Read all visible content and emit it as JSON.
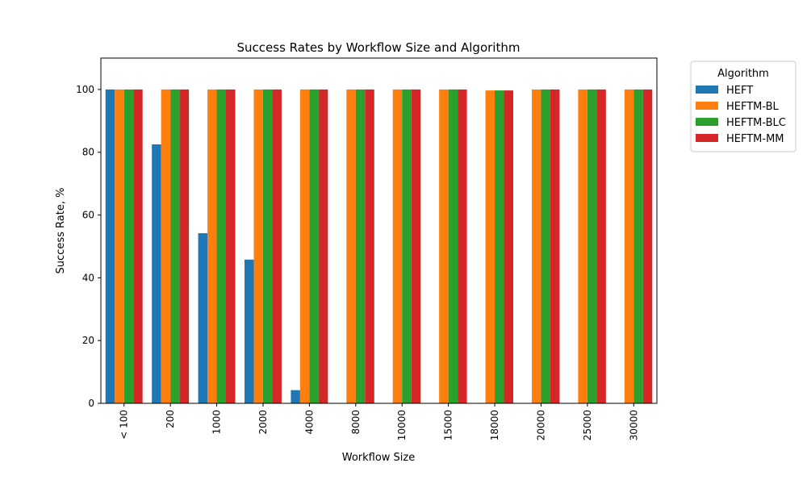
{
  "chart_data": {
    "type": "bar",
    "title": "Success Rates by Workflow Size and Algorithm",
    "xlabel": "Workflow Size",
    "ylabel": "Success Rate, %",
    "categories": [
      "< 100",
      "200",
      "1000",
      "2000",
      "4000",
      "8000",
      "10000",
      "15000",
      "18000",
      "20000",
      "25000",
      "30000"
    ],
    "series": [
      {
        "name": "HEFT",
        "color": "#1f77b4",
        "values": [
          100,
          82.5,
          54.2,
          45.8,
          4.2,
          0,
          0,
          0,
          0,
          0,
          0,
          0
        ]
      },
      {
        "name": "HEFTM-BL",
        "color": "#ff7f0e",
        "values": [
          100,
          100,
          100,
          100,
          100,
          100,
          100,
          100,
          99.7,
          100,
          100,
          100
        ]
      },
      {
        "name": "HEFTM-BLC",
        "color": "#2ca02c",
        "values": [
          100,
          100,
          100,
          100,
          100,
          100,
          100,
          100,
          99.7,
          100,
          100,
          100
        ]
      },
      {
        "name": "HEFTM-MM",
        "color": "#d62728",
        "values": [
          100,
          100,
          100,
          100,
          100,
          100,
          100,
          100,
          99.7,
          100,
          100,
          100
        ]
      }
    ],
    "ylim": [
      0,
      110
    ],
    "yticks": [
      0,
      20,
      40,
      60,
      80,
      100
    ],
    "grid": false,
    "legend": {
      "title": "Algorithm",
      "placement": "outside-right-top"
    }
  }
}
